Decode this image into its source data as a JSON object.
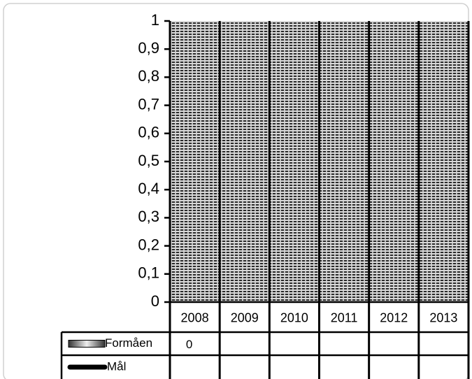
{
  "chart_data": {
    "type": "bar",
    "categories": [
      "2008",
      "2009",
      "2010",
      "2011",
      "2012",
      "2013"
    ],
    "series": [
      {
        "name": "Formåen",
        "color": "#808080",
        "values": [
          0,
          null,
          null,
          null,
          null,
          null
        ]
      },
      {
        "name": "Mål",
        "color": "#000000",
        "values": [
          null,
          null,
          null,
          null,
          null,
          null
        ]
      }
    ],
    "ylim": [
      0,
      1
    ],
    "yticks": [
      0,
      {
        "value": 0.1,
        "label": "0,1"
      },
      {
        "value": 0.2,
        "label": "0,2"
      },
      {
        "value": 0.3,
        "label": "0,3"
      },
      {
        "value": 0.4,
        "label": "0,4"
      },
      {
        "value": 0.5,
        "label": "0,5"
      },
      {
        "value": 0.6,
        "label": "0,6"
      },
      {
        "value": 0.7,
        "label": "0,7"
      },
      {
        "value": 0.8,
        "label": "0,8"
      },
      {
        "value": 0.9,
        "label": "0,9"
      },
      1
    ],
    "grid": true,
    "data_table": true
  }
}
